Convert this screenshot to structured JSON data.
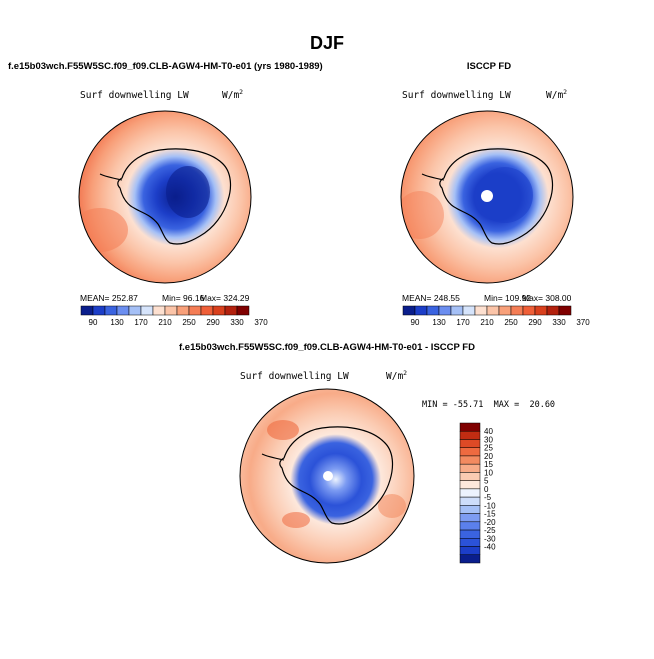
{
  "page": {
    "title": "DJF"
  },
  "colors": {
    "cool": [
      "#0a1e8c",
      "#1c3ec8",
      "#3a63e0",
      "#6b8ef0",
      "#a5c0f6",
      "#d6e4fb"
    ],
    "warm": [
      "#fde0d0",
      "#fbc4a8",
      "#f8a07a",
      "#f47d55",
      "#ef5f38",
      "#d9401d",
      "#b3210e",
      "#7f0000"
    ],
    "diff_scale": [
      "#0a1e8c",
      "#1c3ec8",
      "#2b52d8",
      "#3a63e0",
      "#5b80ec",
      "#7d9cf2",
      "#a5c0f6",
      "#cdddfa",
      "#ecf3fe",
      "#fde8dc",
      "#fbcbb2",
      "#f8ab88",
      "#f38a60",
      "#ee6a40",
      "#dd4a26",
      "#c02c12",
      "#7f0000"
    ]
  },
  "chart_data": [
    {
      "type": "heatmap",
      "projection": "south-polar-stereographic",
      "title": "f.e15b03wch.F55W5SC.f09_f09.CLB-AGW4-HM-T0-e01 (yrs 1980-1989)",
      "field": "Surf downwelling LW",
      "units_label": "W/m",
      "units_exp": "2",
      "stats": {
        "mean_label": "MEAN= 252.87",
        "min_label": "Min=  96.16",
        "max_label": "Max= 324.29"
      },
      "colorbar_ticks": [
        "90",
        "130",
        "170",
        "210",
        "250",
        "290",
        "330",
        "370"
      ]
    },
    {
      "type": "heatmap",
      "projection": "south-polar-stereographic",
      "title": "ISCCP FD",
      "field": "Surf downwelling LW",
      "units_label": "W/m",
      "units_exp": "2",
      "stats": {
        "mean_label": "MEAN= 248.55",
        "min_label": "Min= 109.92",
        "max_label": "Max= 308.00"
      },
      "colorbar_ticks": [
        "90",
        "130",
        "170",
        "210",
        "250",
        "290",
        "330",
        "370"
      ]
    },
    {
      "type": "heatmap",
      "projection": "south-polar-stereographic",
      "title": "f.e15b03wch.F55W5SC.f09_f09.CLB-AGW4-HM-T0-e01 - ISCCP FD",
      "field": "Surf downwelling LW",
      "units_label": "W/m",
      "units_exp": "2",
      "range_label": "MIN = -55.71  MAX =  20.60",
      "colorbar_ticks": [
        "40",
        "30",
        "25",
        "20",
        "15",
        "10",
        "5",
        "0",
        "-5",
        "-10",
        "-15",
        "-20",
        "-25",
        "-30",
        "-40"
      ]
    }
  ]
}
